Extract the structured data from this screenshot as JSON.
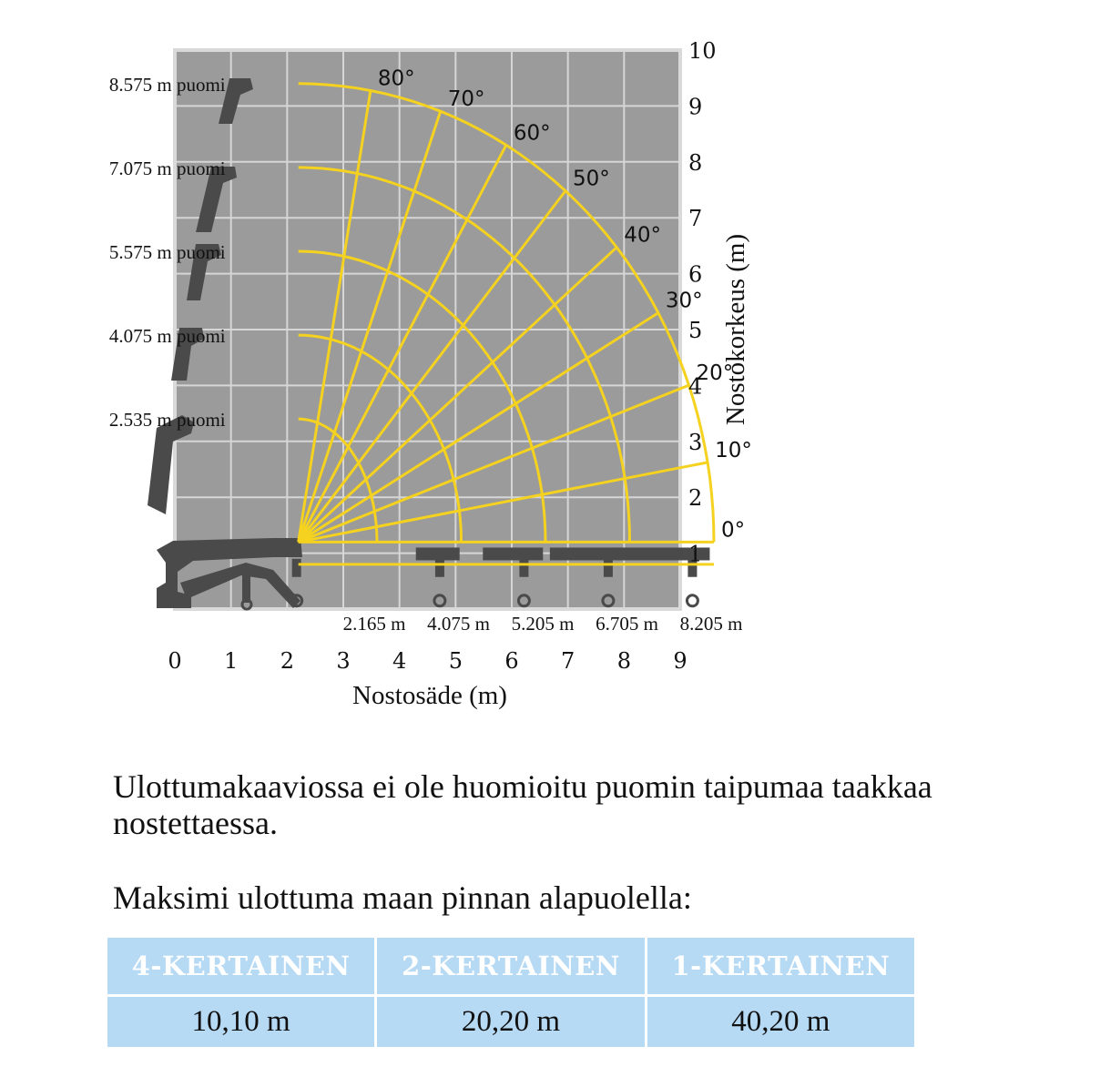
{
  "chart_data": {
    "type": "line",
    "title": "",
    "xlabel": "Nostosäde (m)",
    "ylabel": "Nostokorkeus (m)",
    "xlim": [
      0,
      9
    ],
    "ylim": [
      0,
      10
    ],
    "x_ticks": [
      "0",
      "1",
      "2",
      "3",
      "4",
      "5",
      "6",
      "7",
      "8",
      "9"
    ],
    "y_ticks": [
      "1",
      "2",
      "3",
      "4",
      "5",
      "6",
      "7",
      "8",
      "9",
      "10"
    ],
    "grid": true,
    "colors": {
      "plot_bg": "#9b9b9b",
      "grid": "#d6d6d6",
      "curves": "#f4d21f",
      "crane": "#4a4a4a"
    },
    "pivot": {
      "x": 2.2,
      "y": 1.2
    },
    "booms": [
      {
        "label": "2.535 m puomi",
        "reach_label": "2.165 m",
        "reach": 3.6,
        "max_height": 3.4
      },
      {
        "label": "4.075 m puomi",
        "reach_label": "4.075 m",
        "reach": 5.1,
        "max_height": 4.9
      },
      {
        "label": "5.575 m puomi",
        "reach_label": "5.205 m",
        "reach": 6.6,
        "max_height": 6.4
      },
      {
        "label": "7.075 m puomi",
        "reach_label": "6.705 m",
        "reach": 8.1,
        "max_height": 7.9
      },
      {
        "label": "8.575 m puomi",
        "reach_label": "8.205 m",
        "reach": 9.6,
        "max_height": 9.4
      }
    ],
    "angles": [
      {
        "deg": 0,
        "label": "0°"
      },
      {
        "deg": 10,
        "label": "10°"
      },
      {
        "deg": 20,
        "label": "20°"
      },
      {
        "deg": 30,
        "label": "30°"
      },
      {
        "deg": 40,
        "label": "40°"
      },
      {
        "deg": 50,
        "label": "50°"
      },
      {
        "deg": 60,
        "label": "60°"
      },
      {
        "deg": 70,
        "label": "70°"
      },
      {
        "deg": 80,
        "label": "80°"
      }
    ]
  },
  "notes": {
    "deflection": "Ulottumakaaviossa ei ole huomioitu puomin taipumaa taakkaa nostettaessa.",
    "below_ground_heading": "Maksimi ulottuma maan pinnan alapuolella:"
  },
  "table": {
    "headers": [
      "4-KERTAINEN",
      "2-KERTAINEN",
      "1-KERTAINEN"
    ],
    "values": [
      "10,10 m",
      "20,20 m",
      "40,20 m"
    ]
  }
}
